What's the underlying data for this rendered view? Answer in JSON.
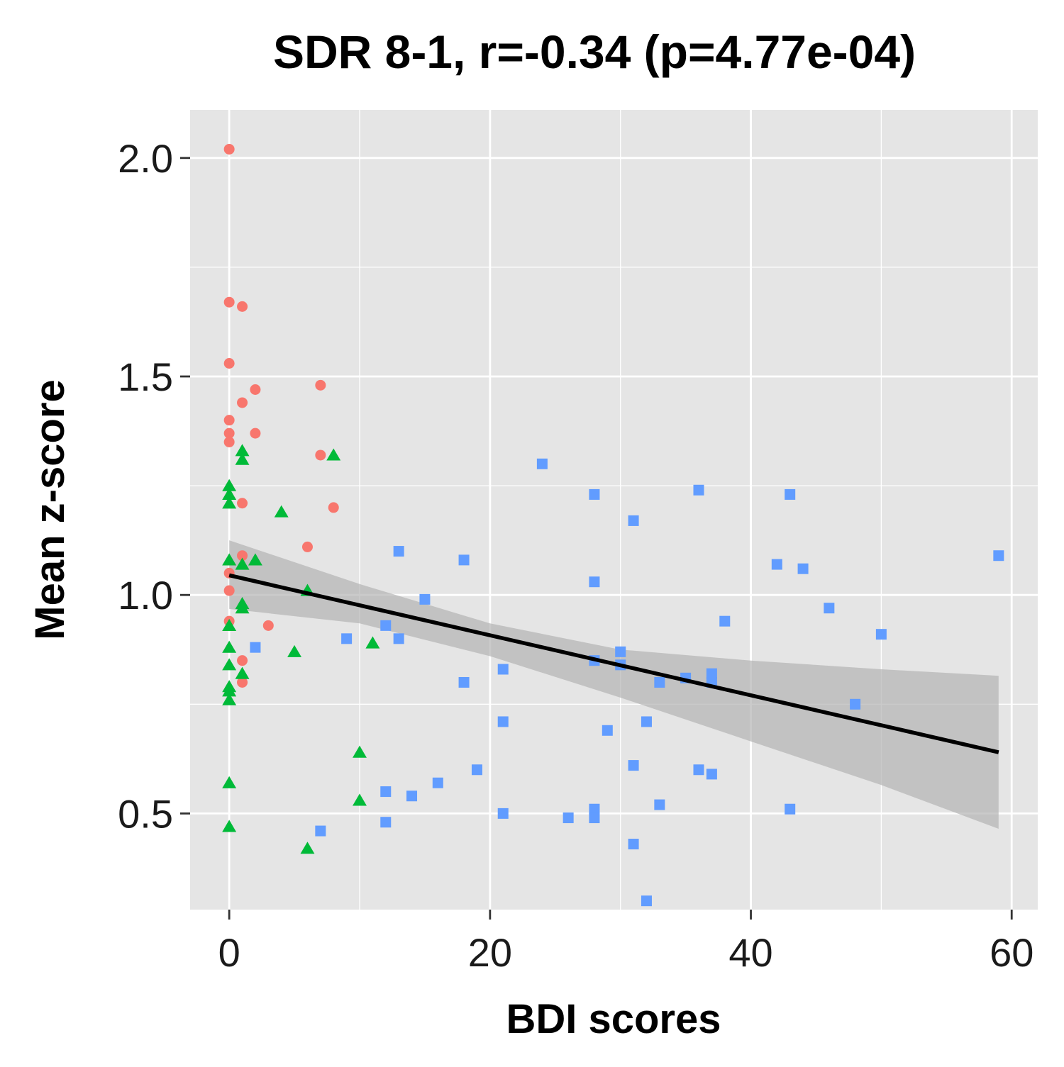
{
  "chart_data": {
    "type": "scatter",
    "title": "SDR 8-1, r=-0.34 (p=4.77e-04)",
    "xlabel": "BDI scores",
    "ylabel": "Mean z-score",
    "xlim": [
      -3,
      62
    ],
    "ylim": [
      0.28,
      2.11
    ],
    "x_ticks": [
      0,
      20,
      40,
      60
    ],
    "x_tick_labels": [
      "0",
      "20",
      "40",
      "60"
    ],
    "y_ticks": [
      0.5,
      1.0,
      1.5,
      2.0
    ],
    "y_tick_labels": [
      "0.5",
      "1.0",
      "1.5",
      "2.0"
    ],
    "x_minor_ticks": [
      10,
      30,
      50
    ],
    "y_minor_ticks": [
      0.25,
      0.75,
      1.25,
      1.75
    ],
    "grid": true,
    "legend": "none",
    "colors": {
      "panel": "#e5e5e5",
      "grid": "#ffffff",
      "group_circle": "#f8766d",
      "group_triangle": "#00ba38",
      "group_square": "#619cff",
      "fit_line": "#000000",
      "confidence_band": "#b3b3b3"
    },
    "series": [
      {
        "marker": "circle",
        "color": "#f8766d",
        "x": [
          0,
          0,
          1,
          0,
          1,
          2,
          7,
          0,
          0,
          2,
          0,
          7,
          1,
          8,
          6,
          1,
          0,
          0,
          3,
          0,
          1,
          1
        ],
        "y": [
          2.02,
          1.67,
          1.66,
          1.53,
          1.44,
          1.47,
          1.48,
          1.4,
          1.37,
          1.37,
          1.35,
          1.32,
          1.21,
          1.2,
          1.11,
          1.09,
          1.05,
          1.01,
          0.93,
          0.94,
          0.85,
          0.8
        ]
      },
      {
        "marker": "triangle",
        "color": "#00ba38",
        "x": [
          1,
          1,
          8,
          0,
          0,
          0,
          4,
          0,
          1,
          2,
          6,
          1,
          1,
          0,
          5,
          11,
          0,
          0,
          1,
          0,
          0,
          0,
          10,
          10,
          0,
          0,
          6
        ],
        "y": [
          1.33,
          1.31,
          1.32,
          1.25,
          1.23,
          1.21,
          1.19,
          1.08,
          1.07,
          1.08,
          1.01,
          0.98,
          0.97,
          0.93,
          0.87,
          0.89,
          0.88,
          0.84,
          0.82,
          0.79,
          0.78,
          0.76,
          0.64,
          0.53,
          0.57,
          0.47,
          0.42
        ]
      },
      {
        "marker": "square",
        "color": "#619cff",
        "x": [
          24,
          28,
          36,
          43,
          31,
          13,
          18,
          59,
          42,
          44,
          28,
          15,
          46,
          38,
          12,
          50,
          13,
          9,
          2,
          30,
          28,
          30,
          21,
          37,
          37,
          35,
          33,
          18,
          48,
          21,
          32,
          29,
          31,
          19,
          36,
          37,
          16,
          12,
          14,
          33,
          28,
          43,
          21,
          26,
          28,
          12,
          7,
          31,
          32
        ],
        "y": [
          1.3,
          1.23,
          1.24,
          1.23,
          1.17,
          1.1,
          1.08,
          1.09,
          1.07,
          1.06,
          1.03,
          0.99,
          0.97,
          0.94,
          0.93,
          0.91,
          0.9,
          0.9,
          0.88,
          0.87,
          0.85,
          0.84,
          0.83,
          0.82,
          0.8,
          0.81,
          0.8,
          0.8,
          0.75,
          0.71,
          0.71,
          0.69,
          0.61,
          0.6,
          0.6,
          0.59,
          0.57,
          0.55,
          0.54,
          0.52,
          0.51,
          0.51,
          0.5,
          0.49,
          0.49,
          0.48,
          0.46,
          0.43,
          0.3
        ]
      }
    ],
    "regression": {
      "x": [
        0,
        59
      ],
      "y": [
        1.045,
        0.64
      ]
    },
    "confidence_band": {
      "x": [
        0,
        10,
        20,
        30,
        40,
        50,
        59
      ],
      "upper": [
        1.125,
        1.025,
        0.935,
        0.875,
        0.85,
        0.83,
        0.815
      ],
      "lower": [
        0.968,
        0.935,
        0.86,
        0.765,
        0.665,
        0.565,
        0.465
      ]
    }
  }
}
